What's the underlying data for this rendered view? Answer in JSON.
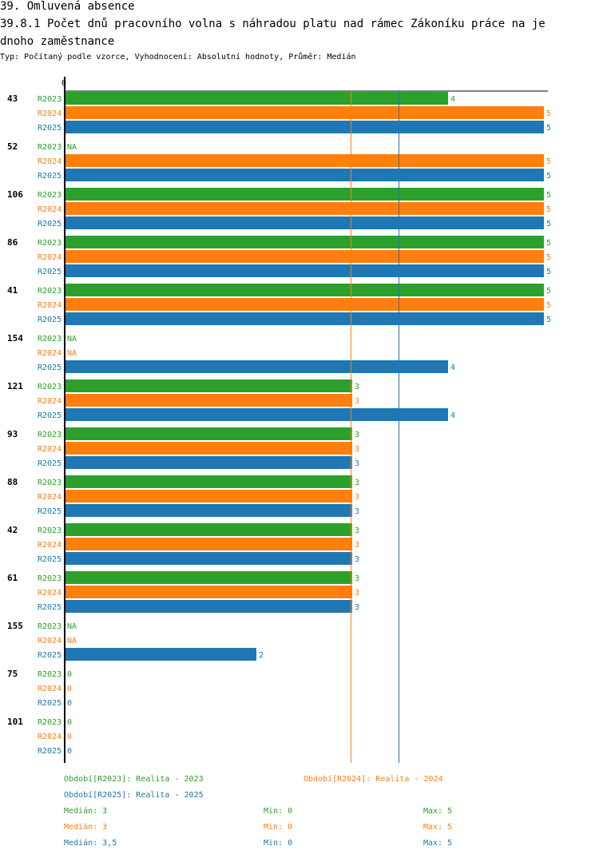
{
  "header": {
    "title_line1": "39. Omluvená absence",
    "title_line2": "39.8.1 Počet dnů pracovního volna s náhradou platu nad rámec Zákoníku práce na je",
    "title_line3": "dnoho zaměstnance",
    "subtitle": "Typ: Počítaný podle vzorce, Vyhodnocení: Absolutní hodnoty, Průměr: Medián"
  },
  "colors": {
    "R2023": "#2ca02c",
    "R2024": "#ff7f0e",
    "R2025": "#1f77b4"
  },
  "chart_data": {
    "type": "bar",
    "orientation": "horizontal",
    "axis_zero_label": "0",
    "xlim": [
      0,
      5
    ],
    "series_names": [
      "R2023",
      "R2024",
      "R2025"
    ],
    "categories": [
      "43",
      "52",
      "106",
      "86",
      "41",
      "154",
      "121",
      "93",
      "88",
      "42",
      "61",
      "155",
      "75",
      "101"
    ],
    "series": [
      {
        "name": "R2023",
        "values": [
          4,
          null,
          5,
          5,
          5,
          null,
          3,
          3,
          3,
          3,
          3,
          null,
          0,
          0
        ]
      },
      {
        "name": "R2024",
        "values": [
          5,
          5,
          5,
          5,
          5,
          null,
          3,
          3,
          3,
          3,
          3,
          null,
          0,
          0
        ]
      },
      {
        "name": "R2025",
        "values": [
          5,
          5,
          5,
          5,
          5,
          4,
          4,
          3,
          3,
          3,
          3,
          2,
          0,
          0
        ]
      }
    ],
    "na_label": "NA",
    "reference_lines": [
      {
        "series": "R2024",
        "label": "Medián",
        "value": 3
      },
      {
        "series": "R2025",
        "label": "Medián",
        "value": 3.5
      }
    ]
  },
  "legend": {
    "period_2023": "Období[R2023]: Realita - 2023",
    "period_2024": "Období[R2024]: Realita - 2024",
    "period_2025": "Období[R2025]: Realita - 2025"
  },
  "stats": [
    {
      "series": "R2023",
      "median": "Medián: 3",
      "min": "Min: 0",
      "max": "Max: 5"
    },
    {
      "series": "R2024",
      "median": "Medián: 3",
      "min": "Min: 0",
      "max": "Max: 5"
    },
    {
      "series": "R2025",
      "median": "Medián: 3,5",
      "min": "Min: 0",
      "max": "Max: 5"
    }
  ]
}
